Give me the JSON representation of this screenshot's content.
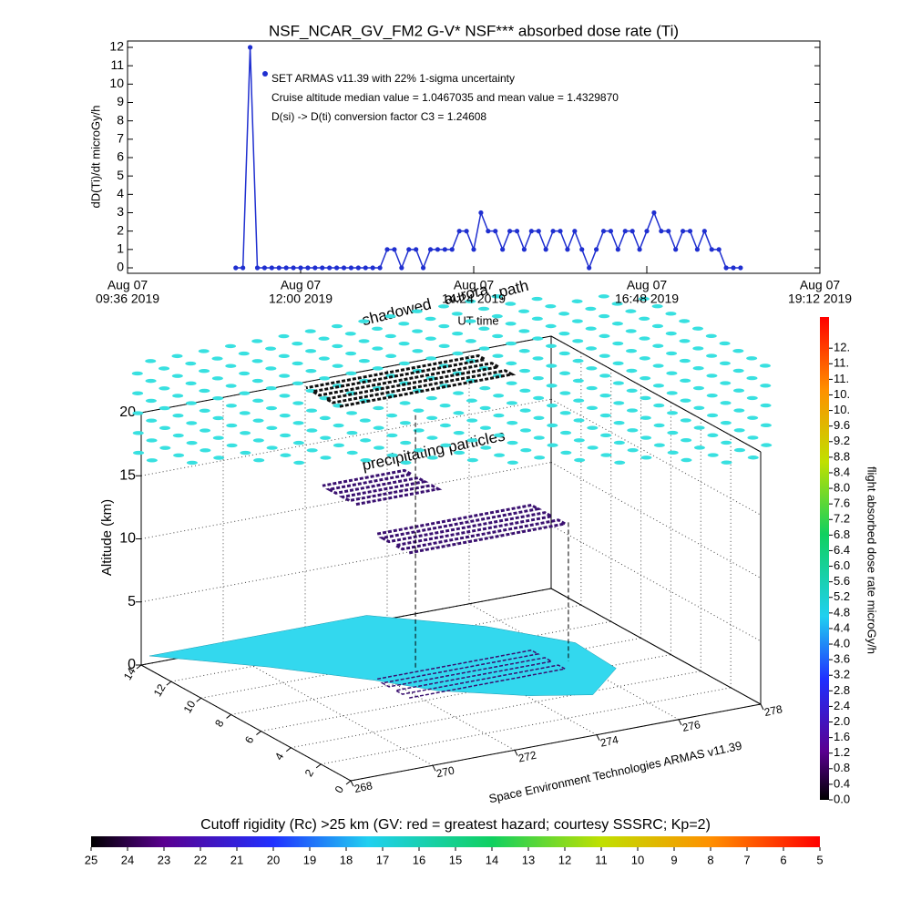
{
  "chart_data": [
    {
      "type": "line",
      "title": "NSF_NCAR_GV_FM2 G-V* NSF*** absorbed dose rate (Ti)",
      "ylabel": "dD(Ti)/dt microGy/h",
      "xlabel": "UT time",
      "x": [
        11.1,
        11.2,
        11.3,
        11.4,
        11.5,
        11.6,
        11.7,
        11.8,
        11.9,
        12.0,
        12.1,
        12.2,
        12.3,
        12.4,
        12.5,
        12.6,
        12.7,
        12.8,
        12.9,
        13.0,
        13.1,
        13.2,
        13.3,
        13.4,
        13.5,
        13.6,
        13.7,
        13.8,
        13.9,
        14.0,
        14.1,
        14.2,
        14.3,
        14.4,
        14.5,
        14.6,
        14.7,
        14.8,
        14.9,
        15.0,
        15.1,
        15.2,
        15.3,
        15.4,
        15.5,
        15.6,
        15.7,
        15.8,
        15.9,
        16.0,
        16.1,
        16.2,
        16.3,
        16.4,
        16.5,
        16.6,
        16.7,
        16.8,
        16.9,
        17.0,
        17.1,
        17.2,
        17.3,
        17.4,
        17.5,
        17.6,
        17.7,
        17.8,
        17.9,
        18.0,
        18.1
      ],
      "series": [
        {
          "name": "SET ARMAS v11.39 with 22% 1-sigma uncertainty",
          "color": "#1f2fd0",
          "values": [
            0,
            0,
            12,
            0,
            0,
            0,
            0,
            0,
            0,
            0,
            0,
            0,
            0,
            0,
            0,
            0,
            0,
            0,
            0,
            0,
            0,
            1,
            1,
            0,
            1,
            1,
            0,
            1,
            1,
            1,
            1,
            2,
            2,
            1,
            3,
            2,
            2,
            1,
            2,
            2,
            1,
            2,
            2,
            1,
            2,
            2,
            1,
            2,
            1,
            0,
            1,
            2,
            2,
            1,
            2,
            2,
            1,
            2,
            3,
            2,
            2,
            1,
            2,
            2,
            1,
            2,
            1,
            1,
            0,
            0,
            0
          ]
        }
      ],
      "annotations": [
        "Cruise altitude median value = 1.0467035 and mean value = 1.4329870",
        "D(si) -> D(ti) conversion factor C3 = 1.24608"
      ],
      "xlim": [
        9.6,
        19.2
      ],
      "xticks": [
        {
          "value": 9.6,
          "label": [
            "Aug 07",
            "09:36 2019"
          ]
        },
        {
          "value": 12,
          "label": [
            "Aug 07",
            "12:00 2019"
          ]
        },
        {
          "value": 14.4,
          "label": [
            "Aug 07",
            "14:24 2019"
          ]
        },
        {
          "value": 16.8,
          "label": [
            "Aug 07",
            "16:48 2019"
          ]
        },
        {
          "value": 19.2,
          "label": [
            "Aug 07",
            "19:12 2019"
          ]
        }
      ],
      "ylim": [
        0,
        12
      ],
      "yticks": [
        0,
        1,
        2,
        3,
        4,
        5,
        6,
        7,
        8,
        9,
        10,
        11,
        12
      ]
    },
    {
      "type": "surface3d",
      "zlabel": "Altitude (km)",
      "zlim": [
        0,
        20
      ],
      "zticks": [
        0,
        5,
        10,
        15,
        20
      ],
      "latlim": [
        0,
        14
      ],
      "latticks": [
        0,
        2,
        4,
        6,
        8,
        10,
        12,
        14
      ],
      "lonlim": [
        268,
        278
      ],
      "lonticks": [
        268,
        270,
        272,
        274,
        276,
        278
      ],
      "annotations": [
        "shadowed",
        "aurora",
        "path",
        "precipitating particles"
      ],
      "footer": "Space Environment Technologies ARMAS v11.39"
    },
    {
      "type": "colorbar",
      "orientation": "vertical",
      "label": "flight absorbed dose rate microGy/h",
      "clim": [
        0,
        12.4
      ],
      "ticks": [
        {
          "value": 0,
          "label": "0.0"
        },
        0.4,
        0.8,
        1.2,
        1.6,
        {
          "value": 2,
          "label": "2.0"
        },
        2.4,
        2.8,
        3.2,
        3.6,
        {
          "value": 4,
          "label": "4.0"
        },
        4.4,
        4.8,
        5.2,
        5.6,
        {
          "value": 6,
          "label": "6.0"
        },
        6.4,
        6.8,
        7.2,
        7.6,
        {
          "value": 8,
          "label": "8.0"
        },
        8.4,
        8.8,
        9.2,
        9.6,
        {
          "value": 10,
          "label": "10."
        },
        {
          "value": 10.4,
          "label": "10."
        },
        {
          "value": 10.8,
          "label": "11."
        },
        {
          "value": 11.2,
          "label": "11."
        },
        {
          "value": 11.6,
          "label": "12."
        }
      ]
    },
    {
      "type": "colorbar",
      "orientation": "horizontal",
      "label": "Cutoff rigidity (Rc) >25 km (GV: red = greatest hazard; courtesy SSSRC; Kp=2)",
      "clim": [
        25,
        5
      ],
      "ticks": [
        25,
        24,
        23,
        22,
        21,
        20,
        19,
        18,
        17,
        16,
        15,
        14,
        13,
        12,
        11,
        10,
        9,
        8,
        7,
        6,
        5
      ]
    }
  ]
}
